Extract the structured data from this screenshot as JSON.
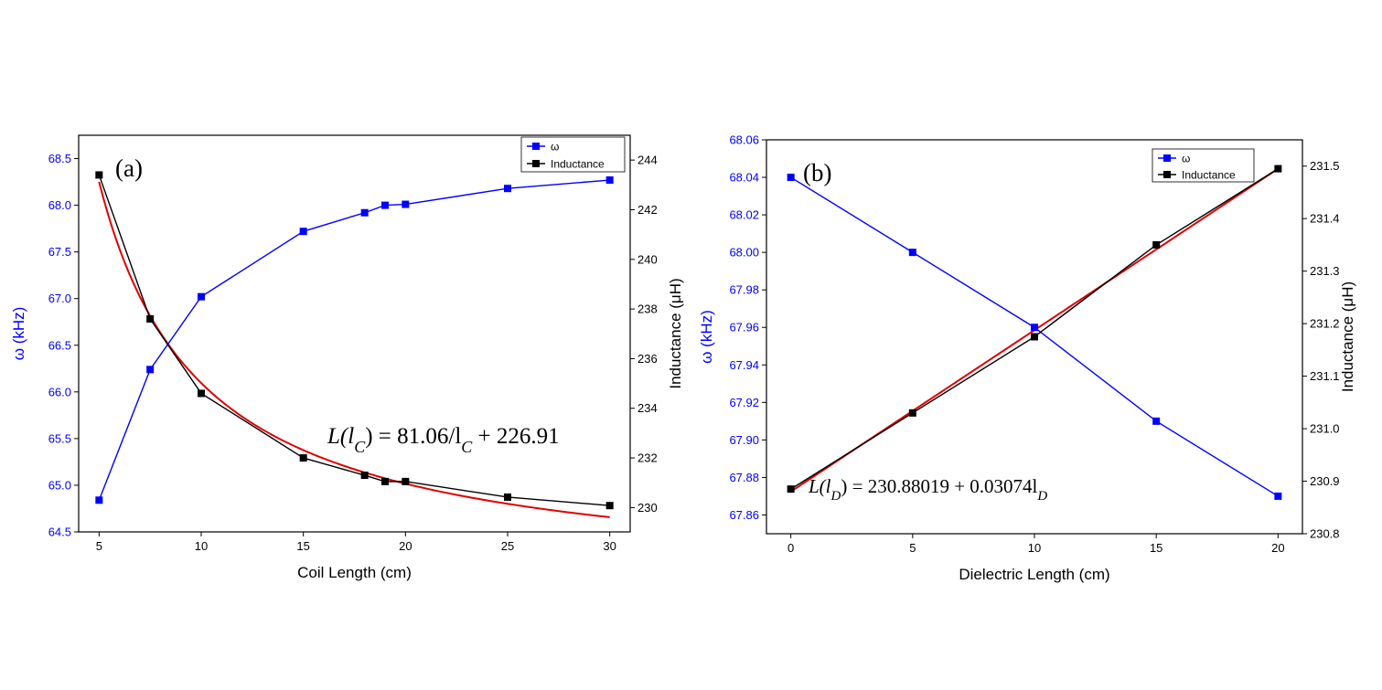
{
  "colors": {
    "omega": "#0000ff",
    "inductance": "#000000",
    "fit": "#e00000",
    "axis": "#000000"
  },
  "chart_data": [
    {
      "type": "line",
      "panel_label": "(a)",
      "xlabel": "Coil Length (cm)",
      "ylabel_left": "ω (kHz)",
      "ylabel_right": "Inductance (μH)",
      "xlim": [
        4,
        31
      ],
      "ylim_left": [
        64.5,
        68.75
      ],
      "ylim_right": [
        229.02,
        245.0
      ],
      "xticks": [
        5,
        10,
        15,
        20,
        25,
        30
      ],
      "yticks_left": [
        64.5,
        65.0,
        65.5,
        66.0,
        66.5,
        67.0,
        67.5,
        68.0,
        68.5
      ],
      "yticks_right": [
        230,
        232,
        234,
        236,
        238,
        240,
        242,
        244
      ],
      "ytick_decimals_left": 1,
      "ytick_decimals_right": 0,
      "legend_position": "top-right",
      "series": [
        {
          "name": "ω",
          "axis": "left",
          "color": "#0000ff",
          "x": [
            5,
            7.5,
            10,
            15,
            18,
            19,
            20,
            25,
            30
          ],
          "y": [
            64.84,
            66.24,
            67.02,
            67.72,
            67.92,
            68.0,
            68.01,
            68.18,
            68.27
          ]
        },
        {
          "name": "Inductance",
          "axis": "right",
          "color": "#000000",
          "x": [
            5,
            7.5,
            10,
            15,
            18,
            19,
            20,
            25,
            30
          ],
          "y": [
            243.4,
            237.6,
            234.6,
            232.0,
            231.3,
            231.05,
            231.05,
            230.42,
            230.08
          ]
        }
      ],
      "fit": {
        "model": "reciprocal",
        "a": 81.06,
        "b": 226.91,
        "x_from": 5,
        "x_to": 30,
        "axis": "right",
        "label_prefix": "L(l",
        "label_sub": "C",
        "label_suffix": ") = 81.06/l",
        "label_sub2": "C",
        "label_tail": " + 226.91"
      }
    },
    {
      "type": "line",
      "panel_label": "(b)",
      "xlabel": "Dielectric Length (cm)",
      "ylabel_left": "ω (kHz)",
      "ylabel_right": "Inductance (μH)",
      "xlim": [
        -1,
        21
      ],
      "ylim_left": [
        67.85,
        68.06
      ],
      "ylim_right": [
        230.8,
        231.55
      ],
      "xticks": [
        0,
        5,
        10,
        15,
        20
      ],
      "yticks_left": [
        67.86,
        67.88,
        67.9,
        67.92,
        67.94,
        67.96,
        67.98,
        68.0,
        68.02,
        68.04,
        68.06
      ],
      "yticks_right": [
        230.8,
        230.9,
        231.0,
        231.1,
        231.2,
        231.3,
        231.4,
        231.5
      ],
      "ytick_decimals_left": 2,
      "ytick_decimals_right": 1,
      "legend_position": "top-right",
      "series": [
        {
          "name": "ω",
          "axis": "left",
          "color": "#0000ff",
          "x": [
            0,
            5,
            10,
            15,
            20
          ],
          "y": [
            68.04,
            68.0,
            67.96,
            67.91,
            67.87
          ]
        },
        {
          "name": "Inductance",
          "axis": "right",
          "color": "#000000",
          "x": [
            0,
            5,
            10,
            15,
            20
          ],
          "y": [
            230.885,
            231.03,
            231.175,
            231.35,
            231.495
          ]
        }
      ],
      "fit": {
        "model": "linear",
        "a": 230.88019,
        "b": 0.03074,
        "x_from": 0,
        "x_to": 20,
        "axis": "right",
        "label_prefix": "L(l",
        "label_sub": "D",
        "label_suffix": ") = 230.88019 + 0.03074l",
        "label_sub2": "D",
        "label_tail": ""
      }
    }
  ]
}
